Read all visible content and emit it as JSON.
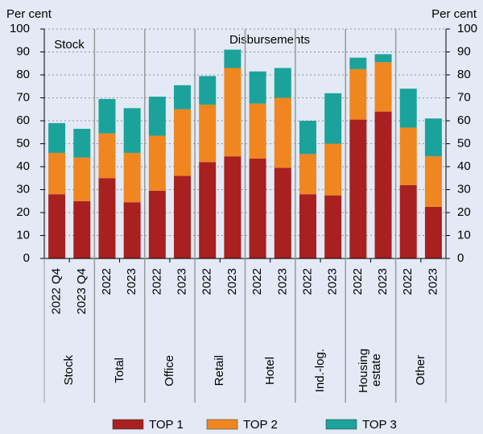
{
  "chart_data": {
    "type": "bar",
    "stacked": true,
    "y_label": "Per cent",
    "y2_label": "Per cent",
    "annotations": [
      "Stock",
      "Disbursements"
    ],
    "categories": [
      "2022 Q4",
      "2023 Q4",
      "2022",
      "2023",
      "2022",
      "2023",
      "2022",
      "2023",
      "2022",
      "2023",
      "2022",
      "2023",
      "2022",
      "2023",
      "2022",
      "2023"
    ],
    "groups": [
      "Stock",
      "Total",
      "Office",
      "Retail",
      "Hotel",
      "Ind.-log.",
      "Housing estate",
      "Other"
    ],
    "series": [
      {
        "name": "TOP 1",
        "color": "#a8201f",
        "values": [
          28,
          25,
          35,
          24.5,
          29.5,
          36,
          42,
          44.5,
          43.5,
          39.5,
          28,
          27.5,
          60.5,
          64,
          32,
          22.5
        ]
      },
      {
        "name": "TOP 2",
        "color": "#f0861f",
        "values": [
          18,
          19,
          19.5,
          21.5,
          24,
          29,
          25,
          38.5,
          24,
          30.5,
          17.5,
          22.5,
          22,
          21.5,
          25,
          22
        ]
      },
      {
        "name": "TOP 3",
        "color": "#1ba39b",
        "values": [
          13,
          12.5,
          15,
          19.5,
          17,
          10.5,
          12.5,
          8,
          14,
          13,
          14.5,
          22,
          5,
          3.5,
          17,
          16.5
        ]
      }
    ],
    "ylim": [
      0,
      100
    ],
    "yticks": [
      0,
      10,
      20,
      30,
      40,
      50,
      60,
      70,
      80,
      90,
      100
    ],
    "y2lim": [
      0,
      100
    ],
    "y2ticks": [
      0,
      10,
      20,
      30,
      40,
      50,
      60,
      70,
      80,
      90,
      100
    ],
    "grid": true
  }
}
